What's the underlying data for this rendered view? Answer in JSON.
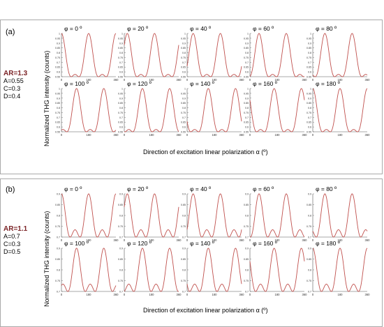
{
  "panels": [
    {
      "label": "(a)",
      "params": {
        "ar": "AR=1.3",
        "a": "A=0.55",
        "c": "C=0.3",
        "d": "D=0.4"
      },
      "ylabel": "Normalized THG intensity (counts)",
      "xlabel": "Direction of excitation linear polarization α (º)",
      "curve_color": "#c0504d"
    },
    {
      "label": "(b)",
      "params": {
        "ar": "AR=1.1",
        "a": "A=0.7",
        "c": "C=0.3",
        "d": "D=0.5"
      },
      "ylabel": "Normalized THG intensity (counts)",
      "xlabel": "Direction of excitation linear polarization α (º)",
      "curve_color": "#c0504d"
    }
  ],
  "chart_data": [
    {
      "type": "line",
      "panel": "(a)",
      "phis": [
        "φ = 0 º",
        "φ = 20 º",
        "φ = 40 º",
        "φ = 60 º",
        "φ = 80 º",
        "φ = 100 º",
        "φ = 120 º",
        "φ = 140 º",
        "φ = 160 º",
        "φ = 180 º"
      ],
      "phi_values": [
        0,
        20,
        40,
        60,
        80,
        100,
        120,
        140,
        160,
        180
      ],
      "params": {
        "A": 0.55,
        "C": 0.3,
        "D": 0.4
      },
      "xlim": [
        0,
        360
      ],
      "xticks": [
        "0",
        "180",
        "360"
      ],
      "ylim": [
        0.55,
        1.0
      ],
      "yticks": [
        "0.55",
        "0.6",
        "0.65",
        "0.7",
        "0.75",
        "0.8",
        "0.85",
        "0.9",
        "0.95",
        "1"
      ],
      "xlabel": "Direction of excitation linear polarization α (º)",
      "ylabel": "Normalized THG intensity (counts)"
    },
    {
      "type": "line",
      "panel": "(b)",
      "phis": [
        "φ = 0 º",
        "φ = 20 º",
        "φ = 40 º",
        "φ = 60 º",
        "φ = 80 º",
        "φ = 100 º",
        "φ = 120 º",
        "φ = 140 º",
        "φ = 160 º",
        "φ = 180 º"
      ],
      "phi_values": [
        0,
        20,
        40,
        60,
        80,
        100,
        120,
        140,
        160,
        180
      ],
      "params": {
        "A": 0.7,
        "C": 0.3,
        "D": 0.5
      },
      "xlim": [
        0,
        360
      ],
      "xticks": [
        "0",
        "180",
        "360"
      ],
      "ylim": [
        0.7,
        0.9
      ],
      "yticks": [
        "0.7",
        "0.75",
        "0.8",
        "0.85",
        "0.9"
      ],
      "xlabel": "Direction of excitation linear polarization α (º)",
      "ylabel": "Normalized THG intensity (counts)"
    }
  ]
}
